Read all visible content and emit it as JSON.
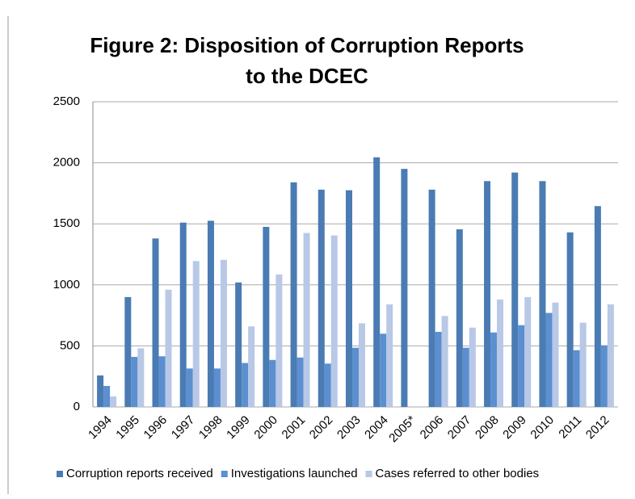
{
  "chart_data": {
    "type": "bar",
    "title": [
      "Figure 2: Disposition of Corruption Reports",
      "to the DCEC"
    ],
    "categories": [
      "1994",
      "1995",
      "1996",
      "1997",
      "1998",
      "1999",
      "2000",
      "2001",
      "2002",
      "2003",
      "2004",
      "2005*",
      "2006",
      "2007",
      "2008",
      "2009",
      "2010",
      "2011",
      "2012"
    ],
    "series": [
      {
        "name": "Corruption reports received",
        "color": "#4a7bb3",
        "values": [
          258,
          900,
          1380,
          1510,
          1525,
          1020,
          1475,
          1840,
          1780,
          1775,
          2045,
          1950,
          1780,
          1455,
          1850,
          1920,
          1850,
          1430,
          1645
        ]
      },
      {
        "name": "Investigations launched",
        "color": "#5b8fd0",
        "values": [
          172,
          410,
          415,
          315,
          315,
          360,
          385,
          405,
          355,
          485,
          600,
          null,
          615,
          485,
          610,
          670,
          770,
          465,
          505
        ]
      },
      {
        "name": "Cases referred to other bodies",
        "color": "#b8c8e6",
        "values": [
          86,
          480,
          960,
          1195,
          1205,
          660,
          1085,
          1425,
          1405,
          685,
          840,
          null,
          745,
          650,
          880,
          900,
          855,
          690,
          840
        ]
      }
    ],
    "ylim": [
      0,
      2500
    ],
    "yticks": [
      0,
      500,
      1000,
      1500,
      2000,
      2500
    ],
    "grid": true,
    "legend": "bottom"
  }
}
